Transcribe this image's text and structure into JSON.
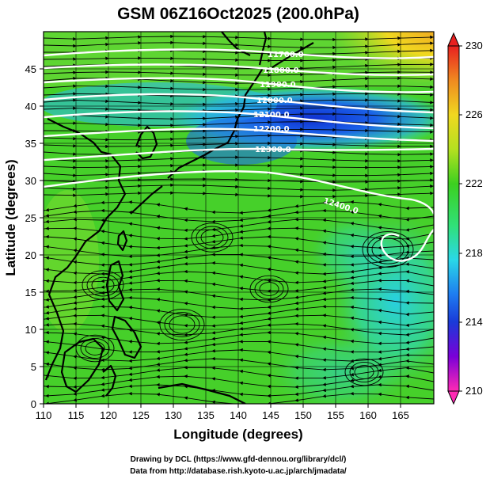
{
  "title": "GSM 06Z16Oct2025 (200.0hPa)",
  "x_axis": {
    "label": "Longitude (degrees)",
    "ticks": [
      "110",
      "115",
      "120",
      "125",
      "130",
      "135",
      "140",
      "145",
      "150",
      "155",
      "160",
      "165"
    ]
  },
  "y_axis": {
    "label": "Latitude (degrees)",
    "ticks": [
      "0",
      "5",
      "10",
      "15",
      "20",
      "25",
      "30",
      "35",
      "40",
      "45"
    ]
  },
  "colorbar": {
    "ticks": [
      "210",
      "214",
      "218",
      "222",
      "226",
      "230"
    ],
    "colors": [
      "#ff2ab4",
      "#7a00d8",
      "#1a3ad8",
      "#1e7cf0",
      "#2ad8e8",
      "#30e078",
      "#3cd020",
      "#b4e020",
      "#f0d820",
      "#f08a20",
      "#e82020"
    ]
  },
  "contours": {
    "labels": [
      "11700.0",
      "11800.0",
      "11900.0",
      "12000.0",
      "12100.0",
      "12200.0",
      "12300.0",
      "12400.0"
    ],
    "color": "#ffffff"
  },
  "credits": {
    "line1": "Drawing by DCL (https://www.gfd-dennou.org/library/dcl/)",
    "line2": "Data from http://database.rish.kyoto-u.ac.jp/arch/jmadata/"
  },
  "domain": {
    "lon_range": [
      110,
      170
    ],
    "lat_range": [
      0,
      50
    ]
  }
}
